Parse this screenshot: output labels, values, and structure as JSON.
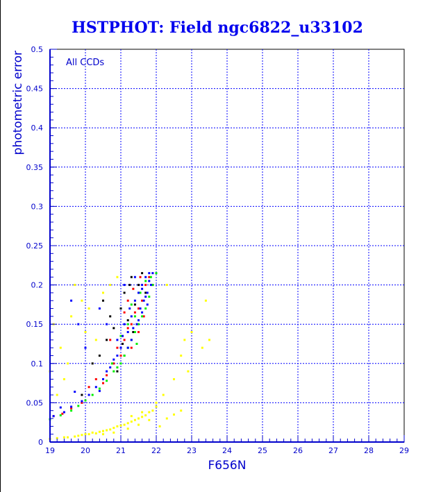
{
  "chart_data": {
    "type": "scatter",
    "title": "HSTPHOT: Field ngc6822_u33102",
    "xlabel": "F656N",
    "ylabel": "photometric error",
    "annotation": "All CCDs",
    "xlim": [
      19,
      29
    ],
    "ylim": [
      0,
      0.5
    ],
    "grid": true,
    "xticks": [
      "19",
      "20",
      "21",
      "22",
      "23",
      "24",
      "25",
      "26",
      "27",
      "28",
      "29"
    ],
    "yticks": [
      "0",
      "0.05",
      "0.1",
      "0.15",
      "0.2",
      "0.25",
      "0.3",
      "0.35",
      "0.4",
      "0.45",
      "0.5"
    ],
    "series": [
      {
        "name": "black",
        "color": "#000000",
        "points": [
          [
            19.9,
            0.06
          ],
          [
            20.2,
            0.1
          ],
          [
            20.4,
            0.11
          ],
          [
            20.6,
            0.13
          ],
          [
            20.7,
            0.16
          ],
          [
            20.8,
            0.145
          ],
          [
            20.9,
            0.09
          ],
          [
            21.0,
            0.17
          ],
          [
            21.05,
            0.125
          ],
          [
            21.1,
            0.19
          ],
          [
            21.2,
            0.155
          ],
          [
            21.25,
            0.2
          ],
          [
            21.3,
            0.21
          ],
          [
            21.4,
            0.175
          ],
          [
            21.5,
            0.2
          ],
          [
            21.6,
            0.215
          ],
          [
            21.1,
            0.11
          ],
          [
            20.5,
            0.18
          ],
          [
            21.7,
            0.19
          ],
          [
            21.35,
            0.14
          ]
        ]
      },
      {
        "name": "red",
        "color": "#ff0000",
        "points": [
          [
            19.1,
            0.033
          ],
          [
            19.35,
            0.036
          ],
          [
            19.6,
            0.043
          ],
          [
            19.9,
            0.05
          ],
          [
            20.1,
            0.07
          ],
          [
            20.3,
            0.08
          ],
          [
            20.5,
            0.075
          ],
          [
            20.6,
            0.085
          ],
          [
            20.8,
            0.1
          ],
          [
            20.9,
            0.12
          ],
          [
            21.0,
            0.11
          ],
          [
            21.1,
            0.13
          ],
          [
            21.2,
            0.145
          ],
          [
            21.3,
            0.15
          ],
          [
            21.4,
            0.165
          ],
          [
            21.5,
            0.17
          ],
          [
            21.6,
            0.18
          ],
          [
            21.7,
            0.2
          ],
          [
            21.8,
            0.21
          ],
          [
            21.9,
            0.2
          ],
          [
            21.3,
            0.12
          ],
          [
            21.5,
            0.14
          ],
          [
            21.65,
            0.16
          ],
          [
            21.1,
            0.165
          ],
          [
            21.35,
            0.195
          ],
          [
            21.55,
            0.21
          ],
          [
            20.7,
            0.13
          ],
          [
            21.2,
            0.18
          ]
        ]
      },
      {
        "name": "green",
        "color": "#00ee00",
        "points": [
          [
            19.0,
            0.029
          ],
          [
            19.3,
            0.034
          ],
          [
            19.6,
            0.04
          ],
          [
            19.8,
            0.046
          ],
          [
            20.0,
            0.053
          ],
          [
            20.2,
            0.06
          ],
          [
            20.4,
            0.068
          ],
          [
            20.6,
            0.078
          ],
          [
            20.8,
            0.09
          ],
          [
            20.9,
            0.095
          ],
          [
            21.0,
            0.1
          ],
          [
            21.1,
            0.11
          ],
          [
            21.2,
            0.12
          ],
          [
            21.3,
            0.13
          ],
          [
            21.4,
            0.14
          ],
          [
            21.5,
            0.15
          ],
          [
            21.6,
            0.16
          ],
          [
            21.7,
            0.17
          ],
          [
            21.8,
            0.185
          ],
          [
            21.9,
            0.2
          ],
          [
            22.0,
            0.215
          ],
          [
            21.4,
            0.16
          ],
          [
            21.55,
            0.19
          ],
          [
            21.7,
            0.205
          ],
          [
            21.2,
            0.15
          ],
          [
            21.3,
            0.175
          ],
          [
            21.0,
            0.135
          ],
          [
            21.85,
            0.21
          ],
          [
            21.45,
            0.125
          ],
          [
            20.75,
            0.1
          ]
        ]
      },
      {
        "name": "blue",
        "color": "#0000ff",
        "points": [
          [
            19.1,
            0.033
          ],
          [
            19.4,
            0.038
          ],
          [
            19.6,
            0.045
          ],
          [
            19.9,
            0.052
          ],
          [
            20.1,
            0.06
          ],
          [
            20.3,
            0.07
          ],
          [
            20.4,
            0.065
          ],
          [
            20.5,
            0.08
          ],
          [
            20.6,
            0.09
          ],
          [
            20.7,
            0.095
          ],
          [
            20.8,
            0.105
          ],
          [
            20.9,
            0.11
          ],
          [
            21.0,
            0.12
          ],
          [
            21.05,
            0.135
          ],
          [
            21.1,
            0.15
          ],
          [
            21.2,
            0.14
          ],
          [
            21.25,
            0.17
          ],
          [
            21.3,
            0.16
          ],
          [
            21.4,
            0.18
          ],
          [
            21.45,
            0.15
          ],
          [
            21.5,
            0.19
          ],
          [
            21.55,
            0.17
          ],
          [
            21.6,
            0.2
          ],
          [
            21.65,
            0.18
          ],
          [
            21.7,
            0.21
          ],
          [
            21.75,
            0.19
          ],
          [
            21.8,
            0.205
          ],
          [
            21.85,
            0.2
          ],
          [
            21.9,
            0.215
          ],
          [
            21.5,
            0.155
          ],
          [
            21.6,
            0.165
          ],
          [
            21.7,
            0.185
          ],
          [
            21.3,
            0.13
          ],
          [
            21.2,
            0.12
          ],
          [
            20.9,
            0.13
          ],
          [
            20.6,
            0.15
          ],
          [
            20.4,
            0.17
          ],
          [
            19.8,
            0.15
          ],
          [
            19.6,
            0.18
          ],
          [
            20.0,
            0.12
          ],
          [
            21.1,
            0.2
          ],
          [
            21.4,
            0.21
          ],
          [
            21.8,
            0.215
          ],
          [
            21.6,
            0.195
          ],
          [
            21.75,
            0.175
          ],
          [
            21.35,
            0.145
          ],
          [
            19.3,
            0.044
          ],
          [
            19.7,
            0.064
          ]
        ]
      },
      {
        "name": "yellow",
        "color": "#ffff00",
        "points": [
          [
            19.0,
            0.004
          ],
          [
            19.2,
            0.005
          ],
          [
            19.4,
            0.006
          ],
          [
            19.5,
            0.006
          ],
          [
            19.7,
            0.007
          ],
          [
            19.8,
            0.008
          ],
          [
            19.9,
            0.009
          ],
          [
            20.0,
            0.01
          ],
          [
            20.1,
            0.01
          ],
          [
            20.2,
            0.012
          ],
          [
            20.3,
            0.011
          ],
          [
            20.4,
            0.013
          ],
          [
            20.5,
            0.014
          ],
          [
            20.6,
            0.015
          ],
          [
            20.7,
            0.016
          ],
          [
            20.8,
            0.018
          ],
          [
            20.9,
            0.02
          ],
          [
            21.0,
            0.021
          ],
          [
            21.1,
            0.022
          ],
          [
            21.2,
            0.024
          ],
          [
            21.3,
            0.026
          ],
          [
            21.4,
            0.028
          ],
          [
            21.5,
            0.03
          ],
          [
            21.6,
            0.032
          ],
          [
            21.7,
            0.034
          ],
          [
            21.8,
            0.038
          ],
          [
            21.9,
            0.04
          ],
          [
            22.0,
            0.045
          ],
          [
            21.2,
            0.017
          ],
          [
            21.5,
            0.022
          ],
          [
            21.8,
            0.028
          ],
          [
            20.5,
            0.01
          ],
          [
            20.8,
            0.012
          ],
          [
            21.3,
            0.033
          ],
          [
            21.6,
            0.038
          ],
          [
            22.1,
            0.02
          ],
          [
            22.3,
            0.03
          ],
          [
            22.5,
            0.035
          ],
          [
            22.7,
            0.04
          ],
          [
            22.0,
            0.05
          ],
          [
            22.2,
            0.06
          ],
          [
            19.0,
            0.09
          ],
          [
            19.1,
            0.15
          ],
          [
            19.3,
            0.12
          ],
          [
            19.5,
            0.1
          ],
          [
            19.6,
            0.16
          ],
          [
            19.7,
            0.2
          ],
          [
            19.9,
            0.18
          ],
          [
            20.0,
            0.14
          ],
          [
            20.1,
            0.17
          ],
          [
            20.3,
            0.13
          ],
          [
            20.5,
            0.19
          ],
          [
            20.7,
            0.2
          ],
          [
            20.9,
            0.21
          ],
          [
            19.2,
            0.06
          ],
          [
            19.4,
            0.08
          ],
          [
            22.5,
            0.08
          ],
          [
            22.7,
            0.11
          ],
          [
            22.8,
            0.13
          ],
          [
            22.9,
            0.09
          ],
          [
            23.0,
            0.14
          ],
          [
            23.4,
            0.18
          ],
          [
            23.5,
            0.13
          ],
          [
            22.3,
            0.2
          ],
          [
            23.3,
            0.12
          ]
        ]
      }
    ]
  }
}
